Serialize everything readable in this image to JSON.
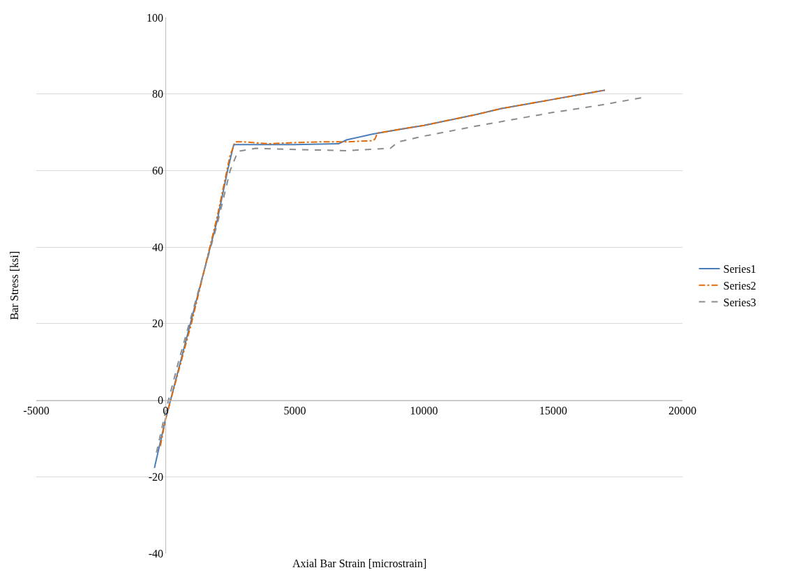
{
  "chart_data": {
    "type": "line",
    "xlabel": "Axial Bar Strain [microstrain]",
    "ylabel": "Bar Stress [ksi]",
    "xlim": [
      -5000,
      20000
    ],
    "xticks": [
      -5000,
      0,
      5000,
      10000,
      15000,
      20000
    ],
    "ylim": [
      -40,
      100
    ],
    "yticks": [
      -40,
      -20,
      0,
      20,
      40,
      60,
      80,
      100
    ],
    "grid": "y",
    "legend": "right",
    "marker": "none",
    "series": [
      {
        "name": "Series1",
        "color": "#4a7ebb",
        "line_style": "solid",
        "x": [
          -430,
          0,
          500,
          1000,
          1500,
          2000,
          2400,
          2640,
          3000,
          4000,
          5000,
          6000,
          6700,
          7000,
          8000,
          9000,
          10000,
          11000,
          12000,
          13000,
          14000,
          14500,
          15000,
          16000,
          17000
        ],
        "values": [
          -17.7,
          -5,
          8,
          21,
          34,
          47,
          60,
          66.8,
          66.8,
          66.8,
          66.8,
          66.9,
          67.0,
          68,
          69.5,
          70.7,
          71.8,
          73.2,
          74.6,
          76.2,
          77.4,
          78.0,
          78.6,
          79.8,
          81
        ]
      },
      {
        "name": "Series2",
        "color": "#e36c0a",
        "line_style": "dashdot",
        "x": [
          -200,
          0,
          200,
          1000,
          2000,
          2500,
          2700,
          3000,
          4000,
          5000,
          6000,
          7000,
          8000,
          8100,
          8200,
          9000,
          10000,
          11000,
          12000,
          13000,
          14000,
          14500,
          15000,
          16000,
          17000
        ],
        "values": [
          -12,
          -5,
          0,
          20,
          48,
          64,
          67.5,
          67.5,
          67,
          67.3,
          67.5,
          67.5,
          67.8,
          68.2,
          69.8,
          70.7,
          71.8,
          73.2,
          74.6,
          76.2,
          77.4,
          78.0,
          78.6,
          79.8,
          81
        ]
      },
      {
        "name": "Series3",
        "color": "#8c8c8c",
        "line_style": "dashed",
        "x": [
          -350,
          0,
          500,
          1000,
          2000,
          2500,
          2800,
          3500,
          5000,
          7000,
          8700,
          9000,
          10000,
          11000,
          12000,
          13000,
          14000,
          15000,
          16000,
          17000,
          18400
        ],
        "values": [
          -13.7,
          -3,
          10,
          22,
          46,
          60,
          65,
          65.8,
          65.5,
          65.2,
          65.8,
          67.5,
          69,
          70.3,
          71.6,
          72.8,
          74,
          75.2,
          76.2,
          77.3,
          79
        ]
      }
    ]
  }
}
